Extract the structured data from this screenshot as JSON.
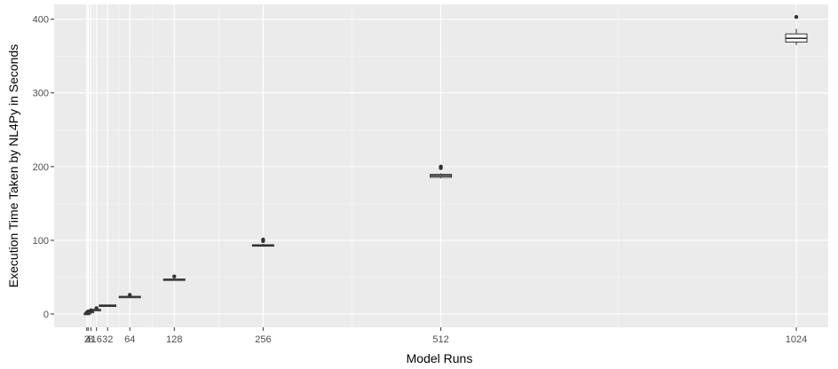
{
  "chart_data": {
    "type": "boxplot",
    "title": "",
    "xlabel": "Model Runs",
    "ylabel": "Execution Time Taken by NL4Py in Seconds",
    "x_scale": "linear",
    "xlim": [
      -45,
      1070
    ],
    "ylim": [
      -18,
      420
    ],
    "grid": true,
    "x_ticks": [
      2,
      4,
      8,
      16,
      32,
      64,
      128,
      256,
      512,
      1024
    ],
    "x_tick_labels": [
      "2",
      "4",
      "8",
      "16",
      "32",
      "64",
      "128",
      "256",
      "512",
      "1024"
    ],
    "y_ticks": [
      0,
      100,
      200,
      300,
      400
    ],
    "y_tick_labels": [
      "0",
      "100",
      "200",
      "300",
      "400"
    ],
    "boxes": [
      {
        "x": 2,
        "min": 0.5,
        "q1": 0.7,
        "median": 0.8,
        "q3": 1.0,
        "max": 1.5,
        "outliers": [
          2.0
        ]
      },
      {
        "x": 4,
        "min": 1.2,
        "q1": 1.5,
        "median": 1.7,
        "q3": 2.0,
        "max": 2.5,
        "outliers": [
          3.5
        ]
      },
      {
        "x": 8,
        "min": 2.8,
        "q1": 3.1,
        "median": 3.3,
        "q3": 3.6,
        "max": 4.0,
        "outliers": [
          5.0
        ]
      },
      {
        "x": 16,
        "min": 5.5,
        "q1": 5.8,
        "median": 6.0,
        "q3": 6.3,
        "max": 6.8,
        "outliers": [
          8.0
        ]
      },
      {
        "x": 32,
        "min": 11.0,
        "q1": 11.5,
        "median": 11.8,
        "q3": 12.2,
        "max": 12.6,
        "outliers": []
      },
      {
        "x": 64,
        "min": 22.5,
        "q1": 23.0,
        "median": 23.5,
        "q3": 24.0,
        "max": 24.5,
        "outliers": [
          26.0
        ]
      },
      {
        "x": 128,
        "min": 45.5,
        "q1": 46.2,
        "median": 47.0,
        "q3": 47.5,
        "max": 48.0,
        "outliers": [
          51.0
        ]
      },
      {
        "x": 256,
        "min": 91.5,
        "q1": 92.5,
        "median": 93.2,
        "q3": 94.0,
        "max": 95.0,
        "outliers": [
          99.0,
          101.0
        ]
      },
      {
        "x": 512,
        "min": 184.0,
        "q1": 185.5,
        "median": 187.5,
        "q3": 189.5,
        "max": 191.0,
        "outliers": [
          198.0,
          200.0
        ]
      },
      {
        "x": 1024,
        "min": 365.0,
        "q1": 369.0,
        "median": 374.0,
        "q3": 380.0,
        "max": 387.0,
        "outliers": [
          403.0
        ]
      }
    ]
  }
}
